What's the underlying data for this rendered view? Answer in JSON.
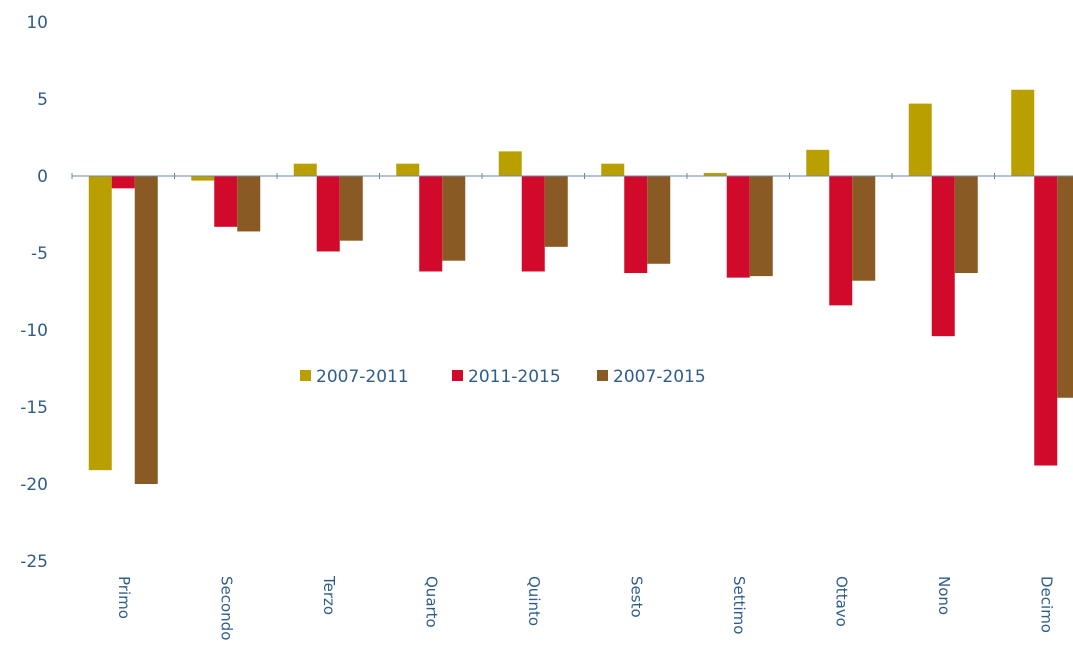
{
  "chart_data": {
    "type": "bar",
    "categories": [
      "Primo",
      "Secondo",
      "Terzo",
      "Quarto",
      "Quinto",
      "Sesto",
      "Settimo",
      "Ottavo",
      "Nono",
      "Decimo"
    ],
    "series": [
      {
        "name": "2007-2011",
        "color": "#b9a000",
        "values": [
          -19.1,
          -0.3,
          0.8,
          0.8,
          1.6,
          0.8,
          0.2,
          1.7,
          4.7,
          5.6
        ]
      },
      {
        "name": "2011-2015",
        "color": "#d10a2c",
        "values": [
          -0.8,
          -3.3,
          -4.9,
          -6.2,
          -6.2,
          -6.3,
          -6.6,
          -8.4,
          -10.4,
          -18.8
        ]
      },
      {
        "name": "2007-2015",
        "color": "#8a5a24",
        "values": [
          -20.0,
          -3.6,
          -4.2,
          -5.5,
          -4.6,
          -5.7,
          -6.5,
          -6.8,
          -6.3,
          -14.4
        ]
      }
    ],
    "y_ticks": [
      "10",
      "5",
      "0",
      "-5",
      "-10",
      "-15",
      "-20",
      "-25"
    ],
    "ylim": [
      -25,
      10
    ],
    "legend_position": "center",
    "title": "",
    "xlabel": "",
    "ylabel": "",
    "grid": false
  }
}
